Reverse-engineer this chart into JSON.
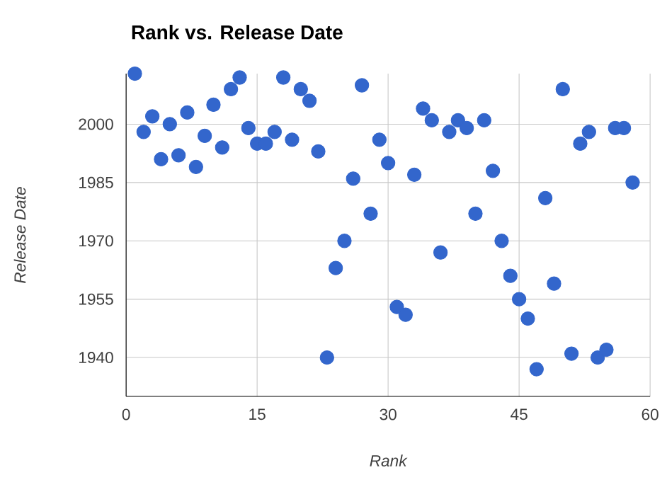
{
  "chart_data": {
    "type": "scatter",
    "title": "Rank vs. Release Date",
    "xlabel": "Rank",
    "ylabel": "Release Date",
    "x": [
      1,
      2,
      3,
      4,
      5,
      6,
      7,
      8,
      9,
      10,
      11,
      12,
      13,
      14,
      15,
      16,
      17,
      18,
      19,
      20,
      21,
      22,
      23,
      24,
      25,
      26,
      27,
      28,
      29,
      30,
      31,
      32,
      33,
      34,
      35,
      36,
      37,
      38,
      39,
      40,
      41,
      42,
      43,
      44,
      45,
      46,
      47,
      48,
      49,
      50,
      51,
      52,
      53,
      54,
      55,
      56,
      57,
      58
    ],
    "series": [
      {
        "color": "#3366cc",
        "values": [
          2013,
          1998,
          2002,
          1991,
          2000,
          1992,
          2003,
          1989,
          1997,
          2005,
          1994,
          2009,
          2012,
          1999,
          1995,
          1995,
          1998,
          2012,
          1996,
          2009,
          2006,
          1993,
          1940,
          1963,
          1970,
          1986,
          2010,
          1977,
          1996,
          1990,
          1953,
          1951,
          1987,
          2004,
          2001,
          1967,
          1998,
          2001,
          1999,
          1977,
          2001,
          1988,
          1970,
          1961,
          1955,
          1950,
          1937,
          1981,
          1959,
          2009,
          1941,
          1995,
          1998,
          1940,
          1942,
          1999,
          1999,
          1985
        ]
      }
    ],
    "xlim": [
      0,
      60
    ],
    "ylim": [
      1930,
      2013
    ],
    "xticks": [
      0,
      15,
      30,
      45,
      60
    ],
    "yticks": [
      1940,
      1955,
      1970,
      1985,
      2000
    ],
    "grid": true,
    "marker": "circle"
  }
}
